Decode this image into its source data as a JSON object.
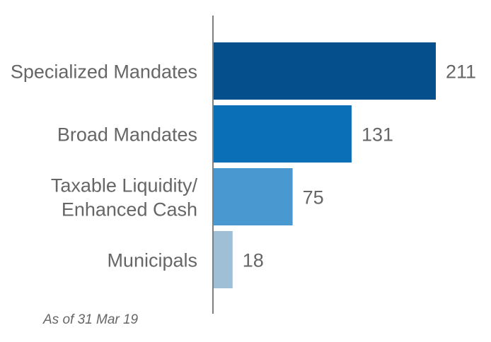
{
  "chart_data": {
    "type": "bar",
    "orientation": "horizontal",
    "categories": [
      [
        "Specialized Mandates"
      ],
      [
        "Broad Mandates"
      ],
      [
        "Taxable Liquidity/",
        "Enhanced Cash"
      ],
      [
        "Municipals"
      ]
    ],
    "values": [
      211,
      131,
      75,
      18
    ],
    "colors": [
      "#054f8d",
      "#0b6fb8",
      "#4a98d0",
      "#9fbfd6"
    ],
    "axis_color": "#7f7f7f",
    "title": "",
    "xlabel": "",
    "ylabel": "",
    "grid": false,
    "xlim": [
      0,
      211
    ]
  },
  "footnote": "As of 31 Mar 19"
}
